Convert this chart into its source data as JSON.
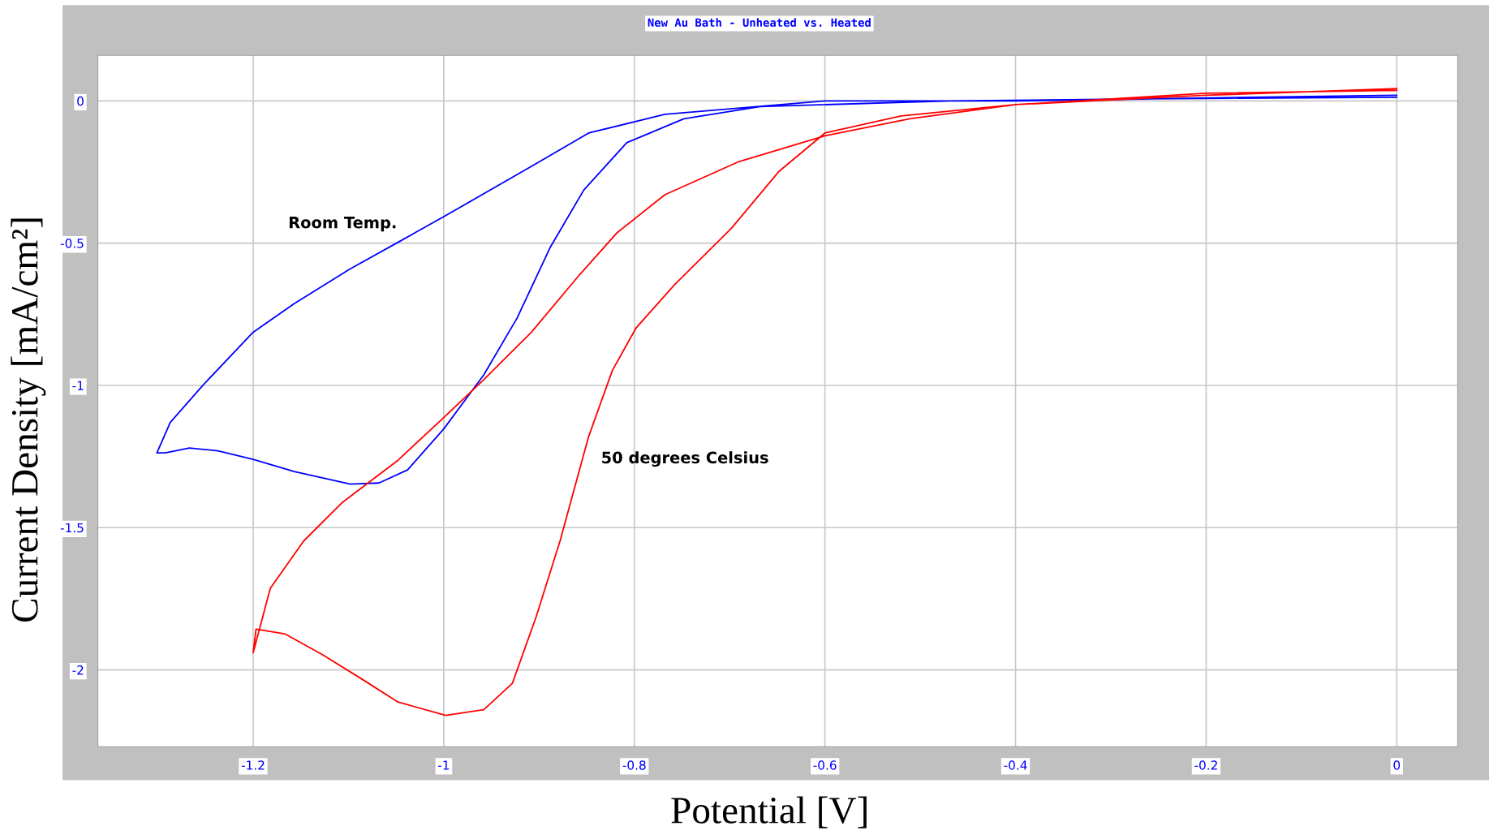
{
  "chart_data": {
    "type": "line",
    "title": "New Au Bath - Unheated vs. Heated",
    "xlabel": "Potential [V]",
    "ylabel": "Current Density [mA/cm²]",
    "xlim": [
      -1.363,
      0.064
    ],
    "ylim": [
      -2.27,
      0.16
    ],
    "xticks": [
      -1.2,
      -1,
      -0.8,
      -0.6,
      -0.4,
      -0.2,
      0
    ],
    "yticks": [
      0,
      -0.5,
      -1,
      -1.5,
      -2
    ],
    "grid": true,
    "legend": false,
    "marker": "none",
    "line_style": "solid",
    "series": [
      {
        "name": "Room Temp.",
        "color": "#0000ff",
        "x": [
          0,
          -0.4,
          -0.6,
          -0.768,
          -0.848,
          -0.908,
          -1.0,
          -1.048,
          -1.098,
          -1.157,
          -1.2,
          -1.252,
          -1.287,
          -1.301,
          -1.292,
          -1.267,
          -1.237,
          -1.2,
          -1.157,
          -1.098,
          -1.068,
          -1.038,
          -1.0,
          -0.958,
          -0.923,
          -0.888,
          -0.853,
          -0.808,
          -0.748,
          -0.668,
          -0.469,
          -0.27,
          0
        ],
        "values": [
          0.02,
          0.0,
          0.0,
          -0.047,
          -0.113,
          -0.23,
          -0.407,
          -0.497,
          -0.59,
          -0.713,
          -0.813,
          -0.997,
          -1.13,
          -1.237,
          -1.237,
          -1.22,
          -1.23,
          -1.26,
          -1.303,
          -1.347,
          -1.343,
          -1.297,
          -1.153,
          -0.963,
          -0.763,
          -0.513,
          -0.313,
          -0.147,
          -0.063,
          -0.02,
          0.0,
          0.007,
          0.013
        ]
      },
      {
        "name": "50 degrees Celsius",
        "color": "#ff0000",
        "x": [
          0,
          -0.2,
          -0.4,
          -0.511,
          -0.6,
          -0.69,
          -0.768,
          -0.818,
          -0.858,
          -0.908,
          -0.958,
          -1.0,
          -1.048,
          -1.107,
          -1.147,
          -1.182,
          -1.2,
          -1.197,
          -1.167,
          -1.127,
          -1.087,
          -1.048,
          -0.998,
          -0.958,
          -0.928,
          -0.903,
          -0.878,
          -0.848,
          -0.823,
          -0.798,
          -0.758,
          -0.698,
          -0.648,
          -0.6,
          -0.52,
          -0.4,
          -0.2,
          0
        ],
        "values": [
          0.043,
          0.02,
          -0.013,
          -0.063,
          -0.123,
          -0.213,
          -0.33,
          -0.463,
          -0.613,
          -0.813,
          -0.98,
          -1.113,
          -1.263,
          -1.413,
          -1.547,
          -1.713,
          -1.94,
          -1.857,
          -1.873,
          -1.947,
          -2.03,
          -2.113,
          -2.16,
          -2.14,
          -2.047,
          -1.813,
          -1.547,
          -1.18,
          -0.947,
          -0.797,
          -0.647,
          -0.447,
          -0.247,
          -0.113,
          -0.053,
          -0.013,
          0.027,
          0.037
        ]
      }
    ]
  }
}
